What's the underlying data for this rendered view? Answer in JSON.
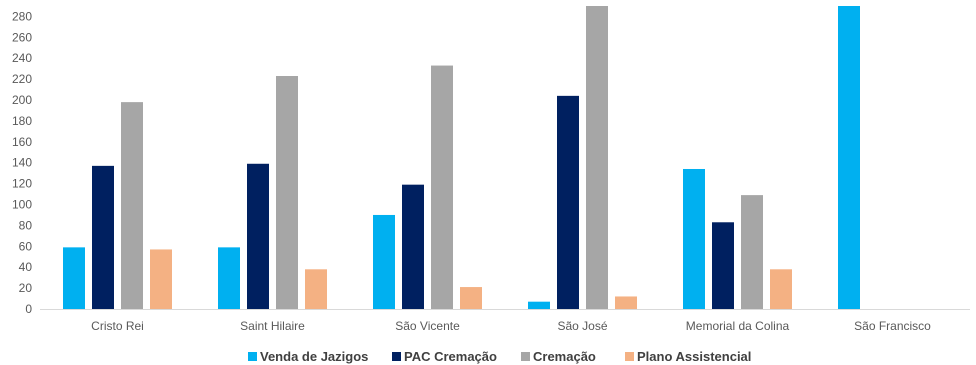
{
  "chart_data": {
    "type": "bar",
    "title": "",
    "xlabel": "",
    "ylabel": "",
    "ylim": [
      0,
      290
    ],
    "yticks": [
      0,
      20,
      40,
      60,
      80,
      100,
      120,
      140,
      160,
      180,
      200,
      220,
      240,
      260,
      280
    ],
    "grid": false,
    "legend_position": "bottom",
    "categories": [
      "Cristo Rei",
      "Saint Hilaire",
      "São Vicente",
      "São José",
      "Memorial da Colina",
      "São Francisco"
    ],
    "series": [
      {
        "name": "Venda de Jazigos",
        "color": "#00B0F0",
        "values": [
          59,
          59,
          90,
          7,
          134,
          290
        ]
      },
      {
        "name": "PAC Cremação",
        "color": "#002060",
        "values": [
          137,
          139,
          119,
          204,
          83,
          0
        ]
      },
      {
        "name": "Cremação",
        "color": "#A6A6A6",
        "values": [
          198,
          223,
          233,
          290,
          109,
          0
        ]
      },
      {
        "name": "Plano Assistencial",
        "color": "#F4B183",
        "values": [
          57,
          38,
          21,
          12,
          38,
          0
        ]
      }
    ]
  }
}
